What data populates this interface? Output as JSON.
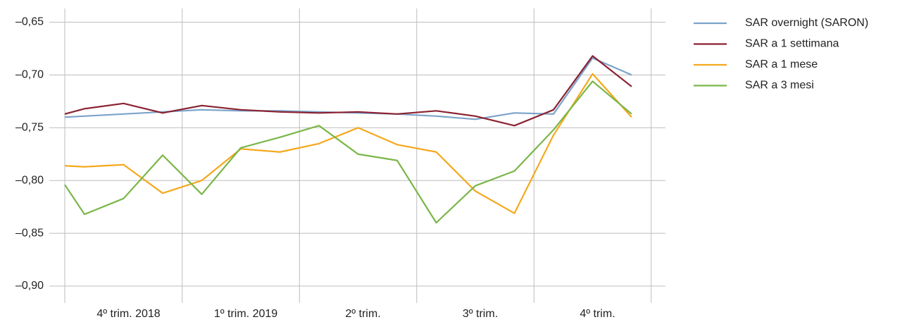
{
  "chart_data": {
    "type": "line",
    "categories": [
      null,
      null,
      "4º trim. 2018",
      null,
      null,
      "1º trim. 2019",
      null,
      null,
      "2º trim.",
      null,
      null,
      "3º trim.",
      null,
      null,
      "4º trim.",
      null
    ],
    "series": [
      {
        "name": "SAR overnight (SARON)",
        "color": "#7ba3c9",
        "values": [
          -0.74,
          -0.739,
          -0.737,
          -0.735,
          -0.733,
          -0.734,
          -0.734,
          -0.735,
          -0.736,
          -0.737,
          -0.739,
          -0.742,
          -0.736,
          -0.737,
          -0.684,
          -0.7
        ]
      },
      {
        "name": "SAR a 1 settimana",
        "color": "#8b2231",
        "values": [
          -0.737,
          -0.732,
          -0.727,
          -0.736,
          -0.729,
          -0.733,
          -0.735,
          -0.736,
          -0.735,
          -0.737,
          -0.734,
          -0.739,
          -0.748,
          -0.733,
          -0.682,
          -0.711
        ]
      },
      {
        "name": "SAR a 1 mese",
        "color": "#f5a81c",
        "values": [
          -0.786,
          -0.787,
          -0.785,
          -0.812,
          -0.8,
          -0.77,
          -0.773,
          -0.765,
          -0.75,
          -0.766,
          -0.773,
          -0.81,
          -0.831,
          -0.757,
          -0.699,
          -0.74
        ]
      },
      {
        "name": "SAR a 3 mesi",
        "color": "#7ab648",
        "values": [
          -0.804,
          -0.832,
          -0.817,
          -0.776,
          -0.813,
          -0.769,
          -0.759,
          -0.748,
          -0.775,
          -0.781,
          -0.84,
          -0.805,
          -0.791,
          -0.752,
          -0.706,
          -0.737
        ]
      }
    ],
    "ylim": [
      -0.916,
      -0.637
    ],
    "yticks": [
      {
        "value": -0.65,
        "label": "–0,65"
      },
      {
        "value": -0.7,
        "label": "–0,70"
      },
      {
        "value": -0.75,
        "label": "–0,75"
      },
      {
        "value": -0.8,
        "label": "–0,80"
      },
      {
        "value": -0.85,
        "label": "–0,85"
      },
      {
        "value": -0.9,
        "label": "–0,90"
      }
    ],
    "grid": true,
    "legend": "right"
  }
}
